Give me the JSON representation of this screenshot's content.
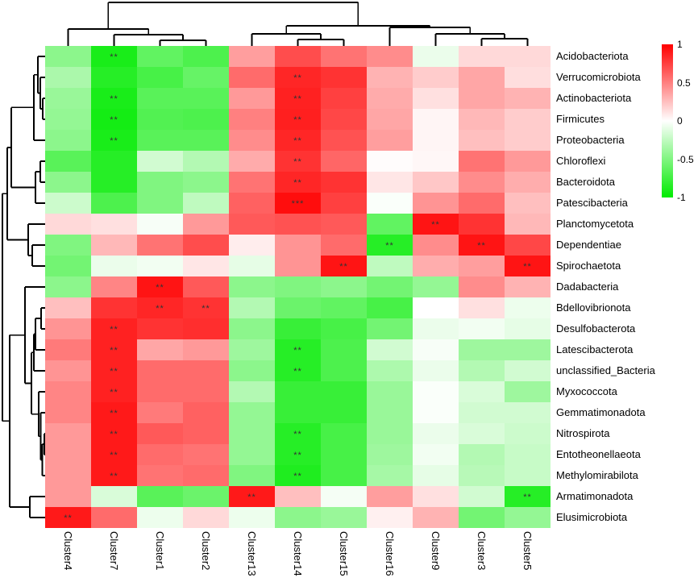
{
  "chart_data": {
    "type": "heatmap",
    "title": "",
    "columns": [
      "Cluster4",
      "Cluster7",
      "Cluster1",
      "Cluster2",
      "Cluster13",
      "Cluster14",
      "Cluster15",
      "Cluster16",
      "Cluster9",
      "Cluster3",
      "Cluster5"
    ],
    "rows": [
      "Acidobacteriota",
      "Verrucomicrobiota",
      "Actinobacteriota",
      "Firmicutes",
      "Proteobacteria",
      "Chloroflexi",
      "Bacteroidota",
      "Patescibacteria",
      "Planctomycetota",
      "Dependentiae",
      "Spirochaetota",
      "Dadabacteria",
      "Bdellovibrionota",
      "Desulfobacterota",
      "Latescibacterota",
      "unclassified_Bacteria",
      "Myxococcota",
      "Gemmatimonadota",
      "Nitrospirota",
      "Entotheonellaeota",
      "Methylomirabilota",
      "Armatimonadota",
      "Elusimicrobiota"
    ],
    "values": [
      [
        -0.45,
        -0.9,
        -0.62,
        -0.7,
        0.38,
        0.7,
        0.55,
        0.45,
        -0.08,
        0.15,
        0.15
      ],
      [
        -0.33,
        -0.85,
        -0.72,
        -0.6,
        0.58,
        0.85,
        0.8,
        0.3,
        0.2,
        0.35,
        0.13
      ],
      [
        -0.4,
        -0.9,
        -0.65,
        -0.65,
        0.4,
        0.87,
        0.75,
        0.33,
        0.12,
        0.35,
        0.3
      ],
      [
        -0.42,
        -0.92,
        -0.68,
        -0.7,
        0.5,
        0.88,
        0.72,
        0.35,
        0.04,
        0.28,
        0.2
      ],
      [
        -0.45,
        -0.9,
        -0.65,
        -0.65,
        0.45,
        0.85,
        0.68,
        0.38,
        0.04,
        0.25,
        0.2
      ],
      [
        -0.65,
        -0.85,
        -0.18,
        -0.3,
        0.33,
        0.8,
        0.6,
        0.01,
        0.03,
        0.55,
        0.4
      ],
      [
        -0.45,
        -0.85,
        -0.5,
        -0.45,
        0.55,
        0.85,
        0.8,
        0.1,
        0.22,
        0.45,
        0.32
      ],
      [
        -0.2,
        -0.7,
        -0.5,
        -0.25,
        0.62,
        0.95,
        0.75,
        -0.02,
        0.42,
        0.58,
        0.25
      ],
      [
        0.15,
        0.12,
        -0.03,
        0.4,
        0.65,
        0.68,
        0.65,
        -0.62,
        0.92,
        0.8,
        0.28
      ],
      [
        -0.5,
        0.28,
        0.55,
        0.7,
        0.07,
        0.42,
        0.58,
        -0.85,
        0.45,
        0.92,
        0.72
      ],
      [
        -0.55,
        -0.08,
        -0.05,
        0.1,
        -0.1,
        0.42,
        0.92,
        -0.25,
        0.32,
        0.38,
        0.92
      ],
      [
        -0.45,
        0.48,
        0.92,
        0.65,
        -0.45,
        -0.5,
        -0.45,
        -0.55,
        -0.42,
        0.45,
        0.3
      ],
      [
        0.25,
        0.8,
        0.85,
        0.8,
        -0.3,
        -0.58,
        -0.62,
        -0.72,
        0.0,
        0.12,
        -0.07
      ],
      [
        0.42,
        0.87,
        0.8,
        0.82,
        -0.45,
        -0.78,
        -0.72,
        -0.55,
        -0.08,
        -0.05,
        -0.1
      ],
      [
        0.52,
        0.87,
        0.35,
        0.4,
        -0.38,
        -0.85,
        -0.7,
        -0.18,
        -0.03,
        -0.38,
        -0.38
      ],
      [
        0.42,
        0.87,
        0.58,
        0.58,
        -0.45,
        -0.85,
        -0.7,
        -0.32,
        -0.08,
        -0.3,
        -0.18
      ],
      [
        0.48,
        0.87,
        0.58,
        0.58,
        -0.3,
        -0.78,
        -0.78,
        -0.4,
        -0.02,
        -0.15,
        -0.38
      ],
      [
        0.48,
        0.9,
        0.52,
        0.62,
        -0.42,
        -0.78,
        -0.78,
        -0.4,
        -0.02,
        -0.18,
        -0.18
      ],
      [
        0.4,
        0.9,
        0.65,
        0.62,
        -0.42,
        -0.85,
        -0.72,
        -0.4,
        -0.08,
        -0.15,
        -0.2
      ],
      [
        0.4,
        0.9,
        0.58,
        0.55,
        -0.42,
        -0.85,
        -0.72,
        -0.38,
        -0.05,
        -0.3,
        -0.22
      ],
      [
        0.4,
        0.9,
        0.55,
        0.58,
        -0.5,
        -0.88,
        -0.72,
        -0.35,
        -0.1,
        -0.28,
        -0.22
      ],
      [
        0.4,
        -0.15,
        -0.65,
        -0.58,
        0.9,
        0.25,
        -0.04,
        0.38,
        0.12,
        -0.18,
        -0.85
      ],
      [
        0.9,
        0.58,
        -0.07,
        0.15,
        -0.07,
        -0.45,
        -0.4,
        0.06,
        0.3,
        -0.55,
        -0.42
      ]
    ],
    "significance": [
      [
        "",
        "**",
        "",
        "",
        "",
        "",
        "",
        "",
        "",
        "",
        ""
      ],
      [
        "",
        "",
        "",
        "",
        "",
        "**",
        "",
        "",
        "",
        "",
        ""
      ],
      [
        "",
        "**",
        "",
        "",
        "",
        "**",
        "",
        "",
        "",
        "",
        ""
      ],
      [
        "",
        "**",
        "",
        "",
        "",
        "**",
        "",
        "",
        "",
        "",
        ""
      ],
      [
        "",
        "**",
        "",
        "",
        "",
        "**",
        "",
        "",
        "",
        "",
        ""
      ],
      [
        "",
        "",
        "",
        "",
        "",
        "**",
        "",
        "",
        "",
        "",
        ""
      ],
      [
        "",
        "",
        "",
        "",
        "",
        "**",
        "",
        "",
        "",
        "",
        ""
      ],
      [
        "",
        "",
        "",
        "",
        "",
        "***",
        "",
        "",
        "",
        "",
        ""
      ],
      [
        "",
        "",
        "",
        "",
        "",
        "",
        "",
        "",
        "**",
        "",
        ""
      ],
      [
        "",
        "",
        "",
        "",
        "",
        "",
        "",
        "**",
        "",
        "**",
        ""
      ],
      [
        "",
        "",
        "",
        "",
        "",
        "",
        "**",
        "",
        "",
        "",
        "**"
      ],
      [
        "",
        "",
        "**",
        "",
        "",
        "",
        "",
        "",
        "",
        "",
        ""
      ],
      [
        "",
        "",
        "**",
        "**",
        "",
        "",
        "",
        "",
        "",
        "",
        ""
      ],
      [
        "",
        "**",
        "",
        "",
        "",
        "",
        "",
        "",
        "",
        "",
        ""
      ],
      [
        "",
        "**",
        "",
        "",
        "",
        "**",
        "",
        "",
        "",
        "",
        ""
      ],
      [
        "",
        "**",
        "",
        "",
        "",
        "**",
        "",
        "",
        "",
        "",
        ""
      ],
      [
        "",
        "**",
        "",
        "",
        "",
        "",
        "",
        "",
        "",
        "",
        ""
      ],
      [
        "",
        "**",
        "",
        "",
        "",
        "",
        "",
        "",
        "",
        "",
        ""
      ],
      [
        "",
        "**",
        "",
        "",
        "",
        "**",
        "",
        "",
        "",
        "",
        ""
      ],
      [
        "",
        "**",
        "",
        "",
        "",
        "**",
        "",
        "",
        "",
        "",
        ""
      ],
      [
        "",
        "**",
        "",
        "",
        "",
        "**",
        "",
        "",
        "",
        "",
        ""
      ],
      [
        "",
        "",
        "",
        "",
        "**",
        "",
        "",
        "",
        "",
        "",
        "**"
      ],
      [
        "**",
        "",
        "",
        "",
        "",
        "",
        "",
        "",
        "",
        "",
        ""
      ]
    ],
    "value_range": [
      -1,
      1
    ],
    "colormap": {
      "max_color": "#FF0000",
      "mid_color": "#FFFFFF",
      "min_color": "#00EB00"
    },
    "legend": {
      "ticks": [
        "1",
        "0.5",
        "0",
        "-0.5",
        "-1"
      ],
      "tick_values": [
        1,
        0.5,
        0,
        -0.5,
        -1
      ]
    },
    "col_dendrogram": {
      "d": 3,
      "c": [
        {
          "d": 36,
          "c": [
            {
              "leaf": 0
            },
            {
              "d": 43,
              "c": [
                {
                  "leaf": 1
                },
                {
                  "d": 50,
                  "c": [
                    {
                      "leaf": 2
                    },
                    {
                      "leaf": 3
                    }
                  ]
                }
              ]
            }
          ]
        },
        {
          "d": 32,
          "c": [
            {
              "d": 42,
              "c": [
                {
                  "leaf": 4
                },
                {
                  "d": 49,
                  "c": [
                    {
                      "leaf": 5
                    },
                    {
                      "leaf": 6
                    }
                  ]
                }
              ]
            },
            {
              "d": 34,
              "c": [
                {
                  "leaf": 7
                },
                {
                  "d": 42,
                  "c": [
                    {
                      "leaf": 8
                    },
                    {
                      "d": 48,
                      "c": [
                        {
                          "leaf": 9
                        },
                        {
                          "leaf": 10
                        }
                      ]
                    }
                  ]
                }
              ]
            }
          ]
        }
      ]
    },
    "row_dendrogram": {
      "d": 3,
      "c": [
        {
          "d": 9,
          "c": [
            {
              "d": 14,
              "c": [
                {
                  "d": 42,
                  "c": [
                    {
                      "d": 47,
                      "c": [
                        {
                          "leaf": 0
                        },
                        {
                          "d": 50,
                          "c": [
                            {
                              "leaf": 1
                            },
                            {
                              "d": 53,
                              "c": [
                                {
                                  "leaf": 2
                                },
                                {
                                  "leaf": 3
                                }
                              ]
                            }
                          ]
                        }
                      ]
                    },
                    {
                      "leaf": 4
                    }
                  ]
                },
                {
                  "d": 44,
                  "c": [
                    {
                      "d": 50,
                      "c": [
                        {
                          "leaf": 5
                        },
                        {
                          "leaf": 6
                        }
                      ]
                    },
                    {
                      "leaf": 7
                    }
                  ]
                }
              ]
            },
            {
              "d": 35,
              "c": [
                {
                  "leaf": 8
                },
                {
                  "d": 40,
                  "c": [
                    {
                      "leaf": 9
                    },
                    {
                      "leaf": 10
                    }
                  ]
                }
              ]
            }
          ]
        },
        {
          "d": 12,
          "c": [
            {
              "d": 31,
              "c": [
                {
                  "leaf": 11
                },
                {
                  "d": 39,
                  "c": [
                    {
                      "d": 42,
                      "c": [
                        {
                          "d": 44,
                          "c": [
                            {
                              "d": 51,
                              "c": [
                                {
                                  "leaf": 12
                                },
                                {
                                  "leaf": 13
                                }
                              ]
                            },
                            {
                              "leaf": 14
                            }
                          ]
                        },
                        {
                          "leaf": 15
                        }
                      ]
                    },
                    {
                      "d": 48,
                      "c": [
                        {
                          "leaf": 16
                        },
                        {
                          "d": 50.5,
                          "c": [
                            {
                              "leaf": 17
                            },
                            {
                              "d": 52.5,
                              "c": [
                                {
                                  "d": 55,
                                  "c": [
                                    {
                                      "leaf": 18
                                    },
                                    {
                                      "leaf": 19
                                    }
                                  ]
                                },
                                {
                                  "leaf": 20
                                }
                              ]
                            }
                          ]
                        }
                      ]
                    }
                  ]
                }
              ]
            },
            {
              "d": 37,
              "c": [
                {
                  "leaf": 21
                },
                {
                  "leaf": 22
                }
              ]
            }
          ]
        }
      ]
    }
  }
}
